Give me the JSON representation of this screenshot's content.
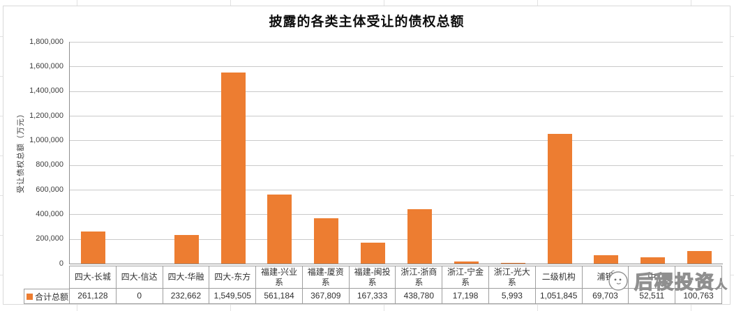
{
  "chart_data": {
    "type": "bar",
    "title": "披露的各类主体受让的债权总额",
    "xlabel": "",
    "ylabel": "受让债权总额（万元）",
    "ylim": [
      0,
      1800000
    ],
    "ytick_step": 200000,
    "ytick_labels": [
      "1,800,000",
      "1,600,000",
      "1,400,000",
      "1,200,000",
      "1,000,000",
      "800,000",
      "600,000",
      "400,000",
      "200,000",
      "0"
    ],
    "grid": true,
    "bar_color": "#ED7D31",
    "categories": [
      "四大-长城",
      "四大-信达",
      "四大-华融",
      "四大-东方",
      "福建-兴业系",
      "福建-厦资系",
      "福建-闽投系",
      "浙江-浙商系",
      "浙江-宁金系",
      "浙江-光大系",
      "二级机构",
      "浦银",
      "中",
      ""
    ],
    "obscured_category_indices": [
      11,
      12,
      13
    ],
    "series": [
      {
        "name": "合计总额",
        "values": [
          261128,
          0,
          232662,
          1549505,
          561184,
          367809,
          167333,
          438780,
          17198,
          5993,
          1051845,
          69703,
          52511,
          100763
        ],
        "values_formatted": [
          "261,128",
          "0",
          "232,662",
          "1,549,505",
          "561,184",
          "367,809",
          "167,333",
          "438,780",
          "17,198",
          "5,993",
          "1,051,845",
          "69,703",
          "52,511",
          "100,763"
        ]
      }
    ],
    "legend": {
      "label": "合计总额",
      "marker_color": "#ED7D31",
      "position": "table-left"
    }
  },
  "watermark": {
    "text_main": "后稷投资",
    "text_small": "人",
    "logo": "mascot-face-icon"
  }
}
